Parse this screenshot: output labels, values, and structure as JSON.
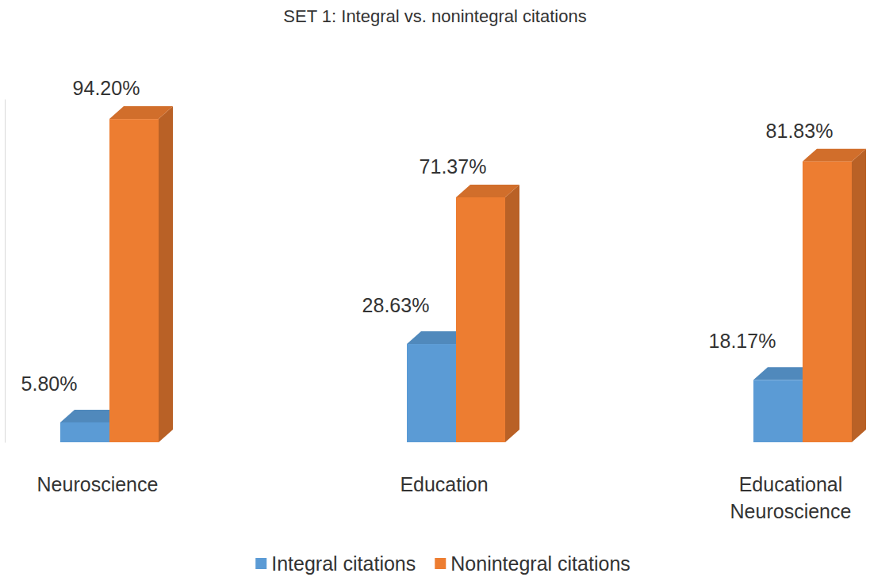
{
  "chart_data": {
    "type": "bar",
    "title": "SET 1: Integral vs. nonintegral citations",
    "categories": [
      "Neuroscience",
      "Education",
      "Educational Neuroscience"
    ],
    "series": [
      {
        "name": "Integral citations",
        "color": "#5b9bd5",
        "values": [
          5.8,
          28.63,
          18.17
        ],
        "value_labels": [
          "5.80%",
          "28.63%",
          "18.17%"
        ]
      },
      {
        "name": "Nonintegral citations",
        "color": "#ed7d31",
        "values": [
          94.2,
          71.37,
          81.83
        ],
        "value_labels": [
          "94.20%",
          "71.37%",
          "81.83%"
        ]
      }
    ],
    "ylim": [
      0,
      100
    ],
    "data_labels": true,
    "tick_labels": false,
    "legend": "bottom"
  }
}
